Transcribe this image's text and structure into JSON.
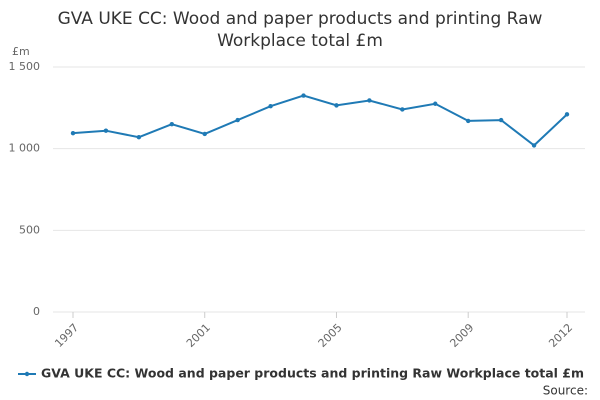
{
  "chart_data": {
    "type": "line",
    "title": "GVA UKE CC: Wood and paper products and printing Raw Workplace total £m",
    "y_unit": "£m",
    "source": "Source:",
    "x": [
      1997,
      1998,
      1999,
      2000,
      2001,
      2002,
      2003,
      2004,
      2005,
      2006,
      2007,
      2008,
      2009,
      2010,
      2011,
      2012
    ],
    "series": [
      {
        "name": "GVA UKE CC: Wood and paper products and printing Raw Workplace total £m",
        "color": "#1f7ab5",
        "values": [
          1095,
          1110,
          1070,
          1150,
          1090,
          1175,
          1260,
          1325,
          1265,
          1295,
          1240,
          1275,
          1170,
          1175,
          1020,
          1210
        ]
      }
    ],
    "xlim": [
      1997,
      2012
    ],
    "xticks": [
      1997,
      2001,
      2005,
      2009,
      2012
    ],
    "ylim": [
      0,
      1500
    ],
    "yticks": [
      0,
      500,
      {
        "value": 1000,
        "label": "1 000"
      },
      {
        "value": 1500,
        "label": "1 500"
      }
    ],
    "grid": true,
    "legend": "bottom"
  }
}
